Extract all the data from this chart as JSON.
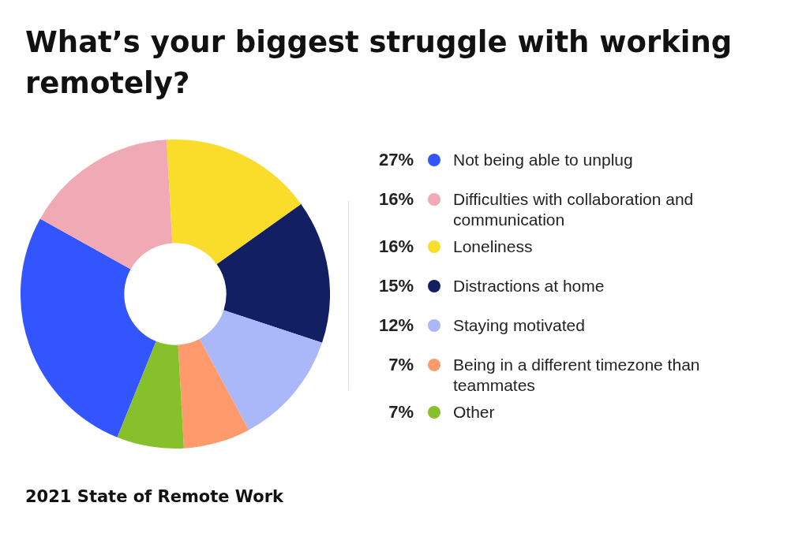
{
  "chart_data": {
    "type": "donut",
    "title": "What’s your biggest struggle with working remotely?",
    "categories": [
      "Not being able to unplug",
      "Difficulties with collaboration and communication",
      "Loneliness",
      "Distractions at home",
      "Staying motivated",
      "Being in a different timezone than teammates",
      "Other"
    ],
    "values": [
      27,
      16,
      16,
      15,
      12,
      7,
      7
    ],
    "value_labels": [
      "27%",
      "16%",
      "16%",
      "15%",
      "12%",
      "7%",
      "7%"
    ],
    "colors": [
      "#3355ff",
      "#f0aab5",
      "#fadc2a",
      "#121f63",
      "#aab8fa",
      "#ff9a6c",
      "#86c02a"
    ],
    "legend": "right",
    "annotations": [
      "2021 State of Remote Work"
    ]
  }
}
